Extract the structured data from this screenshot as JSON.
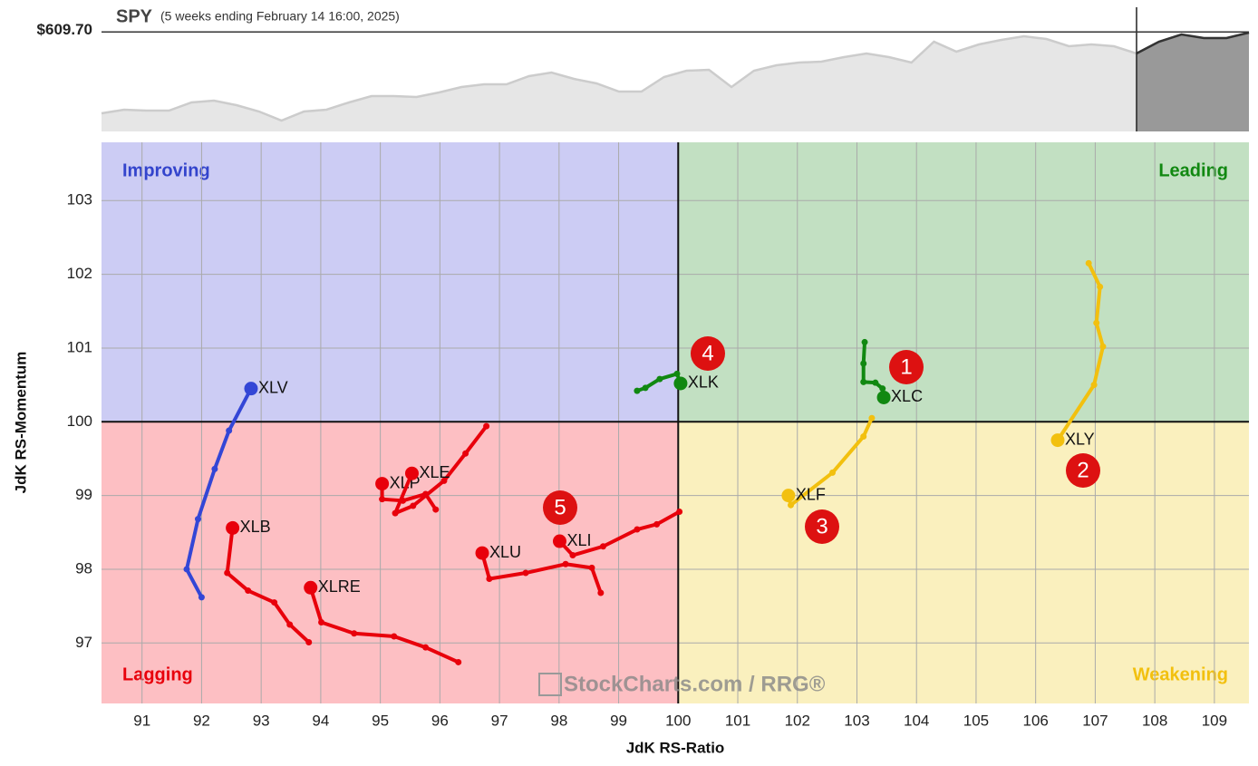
{
  "chart_data": [
    {
      "type": "rrg",
      "x_label": "JdK RS-Ratio",
      "y_label": "JdK RS-Momentum",
      "xlim": [
        90.32,
        109.58
      ],
      "ylim": [
        96.18,
        103.79
      ],
      "xticks": [
        91,
        92,
        93,
        94,
        95,
        96,
        97,
        98,
        99,
        100,
        101,
        102,
        103,
        104,
        105,
        106,
        107,
        108,
        109
      ],
      "yticks": [
        97,
        98,
        99,
        100,
        101,
        102,
        103
      ],
      "center": 100,
      "grid": true,
      "quadrants": [
        {
          "name": "Improving",
          "color": "#3344cc",
          "fill": "#ccccf4"
        },
        {
          "name": "Leading",
          "color": "#118811",
          "fill": "#c2e0c2"
        },
        {
          "name": "Lagging",
          "color": "#e8000b",
          "fill": "#fdbfc3"
        },
        {
          "name": "Weakening",
          "color": "#f2c00f",
          "fill": "#faf0be"
        }
      ],
      "series": [
        {
          "name": "XLV",
          "color": "#3346d6",
          "x": [
            92.0,
            91.75,
            91.94,
            92.22,
            92.46,
            92.83
          ],
          "y": [
            97.62,
            98.0,
            98.68,
            99.36,
            99.88,
            100.45
          ]
        },
        {
          "name": "XLB",
          "color": "#e8000b",
          "x": [
            93.8,
            93.48,
            93.22,
            92.78,
            92.43,
            92.52
          ],
          "y": [
            97.01,
            97.25,
            97.55,
            97.71,
            97.95,
            98.56
          ]
        },
        {
          "name": "XLRE",
          "color": "#e8000b",
          "x": [
            96.31,
            95.76,
            95.23,
            94.56,
            94.01,
            93.83
          ],
          "y": [
            96.74,
            96.94,
            97.09,
            97.13,
            97.28,
            97.75
          ]
        },
        {
          "name": "XLP",
          "color": "#e8000b",
          "x": [
            95.93,
            95.76,
            95.38,
            95.03,
            95.03
          ],
          "y": [
            98.81,
            99.02,
            98.93,
            98.95,
            99.16
          ]
        },
        {
          "name": "XLE",
          "color": "#e8000b",
          "x": [
            96.78,
            96.43,
            96.07,
            95.55,
            95.25,
            95.53
          ],
          "y": [
            99.94,
            99.57,
            99.2,
            98.86,
            98.76,
            99.3
          ]
        },
        {
          "name": "XLU",
          "color": "#e8000b",
          "x": [
            98.7,
            98.55,
            98.11,
            97.44,
            96.83,
            96.71
          ],
          "y": [
            97.68,
            98.02,
            98.07,
            97.95,
            97.87,
            98.22
          ]
        },
        {
          "name": "XLI",
          "color": "#e8000b",
          "x": [
            100.02,
            99.64,
            99.31,
            98.74,
            98.23,
            98.01
          ],
          "y": [
            98.78,
            98.61,
            98.54,
            98.31,
            98.19,
            98.38
          ]
        },
        {
          "name": "XLK",
          "color": "#118811",
          "x": [
            99.31,
            99.45,
            99.69,
            99.98,
            100.04
          ],
          "y": [
            100.42,
            100.46,
            100.58,
            100.65,
            100.52
          ]
        },
        {
          "name": "XLC",
          "color": "#118811",
          "x": [
            103.13,
            103.11,
            103.11,
            103.31,
            103.43,
            103.45
          ],
          "y": [
            101.08,
            100.79,
            100.54,
            100.53,
            100.45,
            100.33
          ]
        },
        {
          "name": "XLF",
          "color": "#f2c00f",
          "x": [
            103.25,
            103.11,
            102.59,
            101.89,
            101.85
          ],
          "y": [
            100.05,
            99.8,
            99.31,
            98.87,
            99.0
          ]
        },
        {
          "name": "XLY",
          "color": "#f2c00f",
          "x": [
            106.89,
            107.08,
            107.02,
            107.13,
            106.98,
            106.37
          ],
          "y": [
            102.15,
            101.83,
            101.34,
            101.02,
            100.5,
            99.75
          ]
        }
      ],
      "annotations": [
        "1",
        "2",
        "3",
        "4",
        "5"
      ],
      "watermark": "StockCharts.com / RRG®"
    },
    {
      "type": "area",
      "title": "SPY",
      "subtitle": "(5 weeks ending February 14 16:00, 2025)",
      "ylim": [
        500,
        637
      ],
      "values": [
        520,
        524,
        523,
        523,
        532,
        534,
        529,
        522,
        512,
        522,
        524,
        532,
        539,
        539,
        538,
        543,
        549,
        552,
        552,
        561,
        565,
        558,
        553,
        544,
        544,
        560,
        567,
        568,
        549,
        567,
        573,
        576,
        577,
        582,
        586,
        582,
        576,
        599,
        588,
        596,
        601,
        605,
        602,
        594,
        596,
        594,
        586,
        599,
        607,
        603,
        603,
        609
      ],
      "reference": {
        "value": 609.7,
        "label": "$609.70"
      }
    }
  ]
}
